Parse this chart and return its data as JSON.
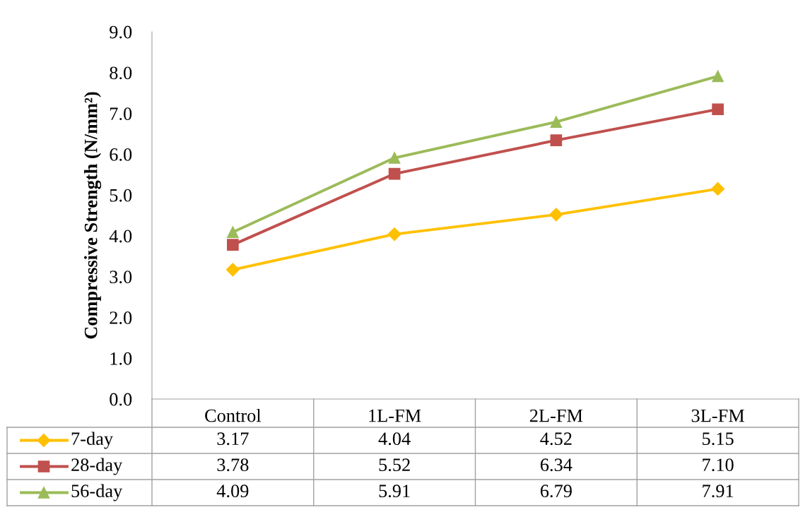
{
  "chart_data": {
    "type": "line",
    "ylabel": "Compressive Strength (N/mm²)",
    "categories": [
      "Control",
      "1L-FM",
      "2L-FM",
      "3L-FM"
    ],
    "series": [
      {
        "name": "7-day",
        "color": "#ffc000",
        "marker": "diamond",
        "values": [
          3.17,
          4.04,
          4.52,
          5.15
        ],
        "value_labels": [
          "3.17",
          "4.04",
          "4.52",
          "5.15"
        ]
      },
      {
        "name": "28-day",
        "color": "#c0504d",
        "marker": "square",
        "values": [
          3.78,
          5.52,
          6.34,
          7.1
        ],
        "value_labels": [
          "3.78",
          "5.52",
          "6.34",
          "7.10"
        ]
      },
      {
        "name": "56-day",
        "color": "#9bbb59",
        "marker": "triangle",
        "values": [
          4.09,
          5.91,
          6.79,
          7.91
        ],
        "value_labels": [
          "4.09",
          "5.91",
          "6.79",
          "7.91"
        ]
      }
    ],
    "ylim": [
      0,
      9
    ],
    "yticks": [
      {
        "value": 0,
        "label": "0.0"
      },
      {
        "value": 1,
        "label": "1.0"
      },
      {
        "value": 2,
        "label": "2.0"
      },
      {
        "value": 3,
        "label": "3.0"
      },
      {
        "value": 4,
        "label": "4.0"
      },
      {
        "value": 5,
        "label": "5.0"
      },
      {
        "value": 6,
        "label": "6.0"
      },
      {
        "value": 7,
        "label": "7.0"
      },
      {
        "value": 8,
        "label": "8.0"
      },
      {
        "value": 9,
        "label": "9.0"
      }
    ],
    "grid": false,
    "legend": "bottom",
    "line_style": "solid"
  }
}
